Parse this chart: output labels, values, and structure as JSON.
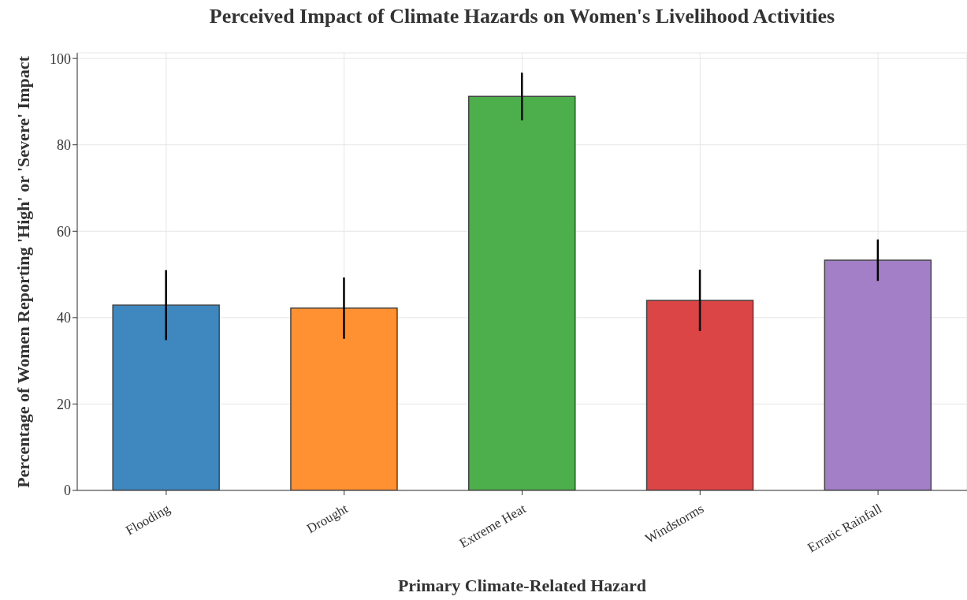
{
  "chart_data": {
    "type": "bar",
    "title": "Perceived Impact of Climate Hazards on Women's Livelihood Activities",
    "xlabel": "Primary Climate-Related Hazard",
    "ylabel": "Percentage of Women Reporting 'High' or 'Severe' Impact",
    "categories": [
      "Flooding",
      "Drought",
      "Extreme Heat",
      "Windstorms",
      "Erratic Rainfall"
    ],
    "values": [
      42.9,
      42.2,
      91.2,
      44.0,
      53.3
    ],
    "errors": [
      8.1,
      7.1,
      5.5,
      7.1,
      4.8
    ],
    "colors": [
      "#3f88bf",
      "#ff9133",
      "#4caf4c",
      "#db4546",
      "#a37fc8"
    ],
    "ylim": [
      0,
      101.3
    ],
    "yticks": [
      0,
      20,
      40,
      60,
      80,
      100
    ],
    "grid": true
  }
}
